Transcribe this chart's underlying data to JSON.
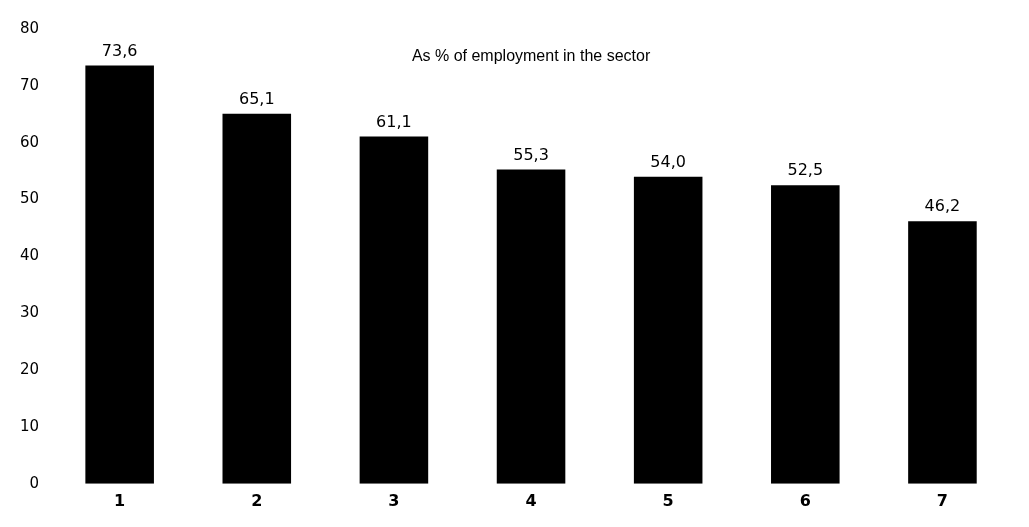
{
  "chart_data": {
    "type": "bar",
    "title": "As % of employment in the sector",
    "categories": [
      "1",
      "2",
      "3",
      "4",
      "5",
      "6",
      "7"
    ],
    "values": [
      73.6,
      65.1,
      61.1,
      55.3,
      54.0,
      52.5,
      46.2
    ],
    "value_labels": [
      "73,6",
      "65,1",
      "61,1",
      "55,3",
      "54,0",
      "52,5",
      "46,2"
    ],
    "color": "#000000",
    "ylim": [
      0,
      80
    ],
    "yticks": [
      0,
      10,
      20,
      30,
      40,
      50,
      60,
      70,
      80
    ],
    "grid": false,
    "legend": false
  }
}
